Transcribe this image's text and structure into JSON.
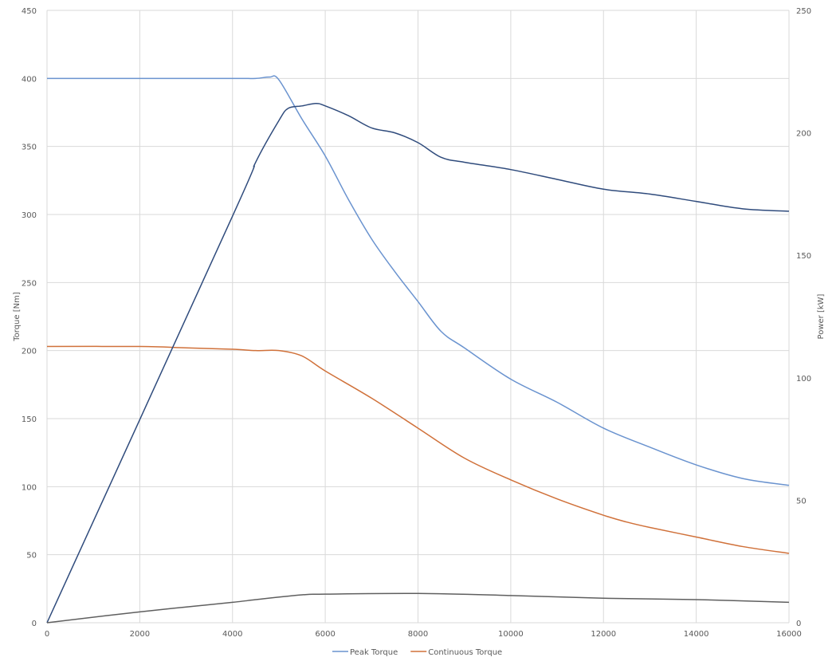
{
  "chart_data": {
    "type": "line",
    "title": "",
    "xlabel": "",
    "ylabel": "Torque [Nm]",
    "y2label": "Power [kW]",
    "xlim": [
      0,
      16000
    ],
    "ylim": [
      0,
      450
    ],
    "y2lim": [
      0,
      250
    ],
    "xticks": [
      0,
      2000,
      4000,
      6000,
      8000,
      10000,
      12000,
      14000,
      16000
    ],
    "yticks": [
      0,
      50,
      100,
      150,
      200,
      250,
      300,
      350,
      400,
      450
    ],
    "y2ticks": [
      0,
      50,
      100,
      150,
      200,
      250
    ],
    "grid": true,
    "legend_position": "bottom",
    "series": [
      {
        "name": "Peak Torque",
        "axis": "left",
        "color": "#6a93cf",
        "x": [
          0,
          2000,
          4000,
          4500,
          4800,
          5000,
          5500,
          6000,
          6500,
          7000,
          7500,
          8000,
          8500,
          9000,
          10000,
          11000,
          12000,
          13000,
          14000,
          15000,
          16000
        ],
        "y": [
          400,
          400,
          400,
          400,
          401,
          399,
          370,
          343,
          311,
          282,
          258,
          236,
          214,
          202,
          179,
          162,
          143,
          129,
          116,
          106,
          101
        ]
      },
      {
        "name": "Continuous Torque",
        "axis": "left",
        "color": "#d0713a",
        "x": [
          0,
          2000,
          3000,
          4000,
          4500,
          5000,
          5500,
          6000,
          7000,
          8000,
          9000,
          10000,
          11000,
          12000,
          12500,
          13000,
          14000,
          15000,
          16000
        ],
        "y": [
          203,
          203,
          202,
          201,
          200,
          200,
          196,
          185,
          165,
          143,
          121,
          105,
          91,
          79,
          74,
          70,
          63,
          56,
          51
        ]
      },
      {
        "axis": "right",
        "color": "#2f4b7c",
        "x": [
          0,
          4000,
          4500,
          5000,
          5200,
          5500,
          5800,
          6000,
          6500,
          7000,
          7500,
          8000,
          8500,
          9000,
          10000,
          11000,
          12000,
          13000,
          14000,
          15000,
          16000
        ],
        "y": [
          0,
          166,
          188,
          205,
          210,
          211,
          212,
          211,
          207,
          202,
          200,
          196,
          190,
          188,
          185,
          181,
          177,
          175,
          172,
          169,
          168
        ]
      },
      {
        "axis": "left",
        "color": "#5f5f5f",
        "x": [
          0,
          2000,
          4000,
          4500,
          5500,
          6000,
          8000,
          10000,
          12000,
          14000,
          16000
        ],
        "y": [
          0,
          8,
          15,
          17,
          20.5,
          21,
          21.5,
          20,
          18,
          17,
          15
        ]
      }
    ]
  }
}
